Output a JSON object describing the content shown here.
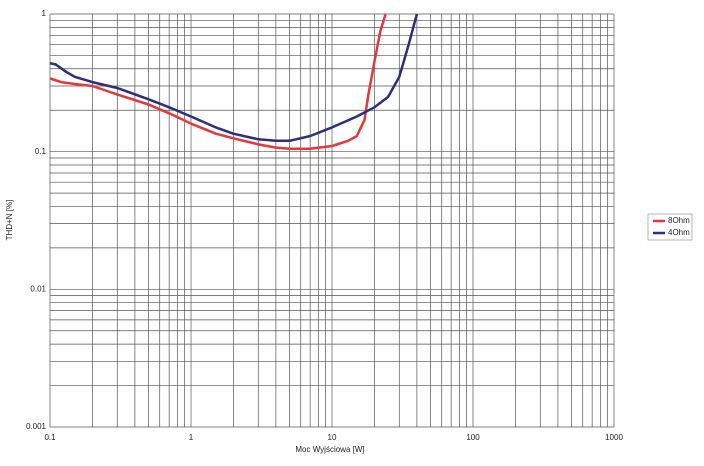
{
  "chart_data": {
    "type": "line",
    "xlabel": "Moc Wyjściowa [W]",
    "ylabel": "THD+N [%]",
    "xlog": true,
    "ylog": true,
    "grid": true,
    "xlim": [
      0.1,
      1000
    ],
    "ylim": [
      0.001,
      1
    ],
    "xticks": [
      0.1,
      1,
      10,
      100,
      1000
    ],
    "yticks": [
      0.001,
      0.01,
      0.1,
      1
    ],
    "xminorticks": [
      0.2,
      0.3,
      0.4,
      0.5,
      0.6,
      0.7,
      0.8,
      0.9,
      2,
      3,
      4,
      5,
      6,
      7,
      8,
      9,
      20,
      30,
      40,
      50,
      60,
      70,
      80,
      90,
      200,
      300,
      400,
      500,
      600,
      700,
      800,
      900
    ],
    "yminorticks": [
      0.002,
      0.003,
      0.004,
      0.005,
      0.006,
      0.007,
      0.008,
      0.009,
      0.02,
      0.03,
      0.04,
      0.05,
      0.06,
      0.07,
      0.08,
      0.09,
      0.2,
      0.3,
      0.4,
      0.5,
      0.6,
      0.7,
      0.8,
      0.9
    ],
    "legend": "right",
    "series": [
      {
        "name": "8Ohm",
        "color": "#e8363a",
        "x": [
          0.1,
          0.12,
          0.15,
          0.2,
          0.3,
          0.5,
          0.7,
          1,
          1.5,
          2,
          3,
          4,
          5,
          7,
          10,
          13,
          15,
          17,
          18,
          20,
          22,
          24
        ],
        "values": [
          0.34,
          0.32,
          0.31,
          0.3,
          0.26,
          0.22,
          0.19,
          0.16,
          0.135,
          0.125,
          0.113,
          0.107,
          0.105,
          0.105,
          0.11,
          0.12,
          0.13,
          0.17,
          0.25,
          0.45,
          0.75,
          1
        ]
      },
      {
        "name": "4Ohm",
        "color": "#2b2f7e",
        "x": [
          0.1,
          0.11,
          0.13,
          0.15,
          0.2,
          0.3,
          0.5,
          0.7,
          1,
          1.5,
          2,
          3,
          4,
          5,
          7,
          10,
          15,
          20,
          25,
          30,
          35,
          40
        ],
        "values": [
          0.44,
          0.43,
          0.38,
          0.35,
          0.32,
          0.29,
          0.24,
          0.21,
          0.18,
          0.15,
          0.135,
          0.123,
          0.12,
          0.12,
          0.13,
          0.15,
          0.18,
          0.21,
          0.25,
          0.35,
          0.6,
          1
        ]
      }
    ]
  }
}
